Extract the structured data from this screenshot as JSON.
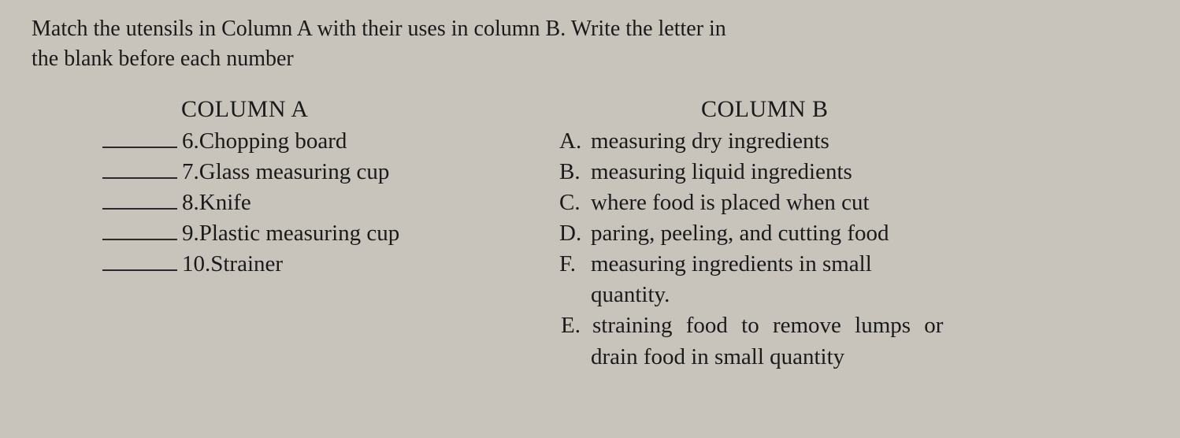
{
  "instructions_line1": "Match the utensils in Column A with their uses in column B.  Write the letter in",
  "instructions_line2": "the blank before each number",
  "columnA": {
    "header": "COLUMN A",
    "items": [
      {
        "num": "6.",
        "label": "Chopping board"
      },
      {
        "num": "7.",
        "label": "Glass measuring cup"
      },
      {
        "num": "8.",
        "label": "Knife"
      },
      {
        "num": "9.",
        "label": "Plastic measuring cup"
      },
      {
        "num": "10.",
        "label": "Strainer"
      }
    ]
  },
  "columnB": {
    "header": "COLUMN B",
    "items": [
      {
        "letter": "A.",
        "text": "measuring dry ingredients"
      },
      {
        "letter": "B.",
        "text": "measuring liquid ingredients"
      },
      {
        "letter": "C.",
        "text": "where food is placed when cut"
      },
      {
        "letter": "D.",
        "text": "paring, peeling, and cutting food"
      },
      {
        "letter": "F.",
        "text": "measuring ingredients in small",
        "cont": "quantity."
      },
      {
        "letter": "E.",
        "text": "straining food to remove lumps or",
        "cont": "drain food in small quantity"
      }
    ]
  },
  "colors": {
    "background": "#c8c4bc",
    "text": "#1a1a1a",
    "blank_line": "#2a2a2a"
  },
  "typography": {
    "body_fontsize": 29,
    "header_fontsize": 30,
    "font_family": "Georgia, Times New Roman, serif"
  }
}
